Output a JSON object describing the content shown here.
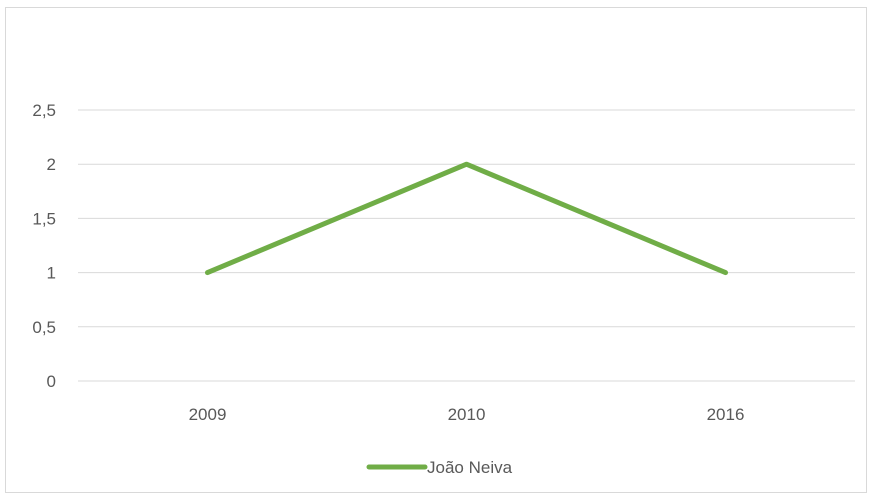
{
  "chart_data": {
    "type": "line",
    "title": "",
    "xlabel": "",
    "ylabel": "",
    "categories": [
      "2009",
      "2010",
      "2016"
    ],
    "series": [
      {
        "name": "João Neiva",
        "values": [
          1,
          2,
          1
        ],
        "color": "#70ad47"
      }
    ],
    "yticks": [
      "0",
      "0,5",
      "1",
      "1,5",
      "2",
      "2,5"
    ],
    "ylim": [
      0,
      2.5
    ],
    "grid": true,
    "legend_position": "bottom",
    "gridline_color": "#d9d9d9",
    "text_color": "#595959"
  }
}
